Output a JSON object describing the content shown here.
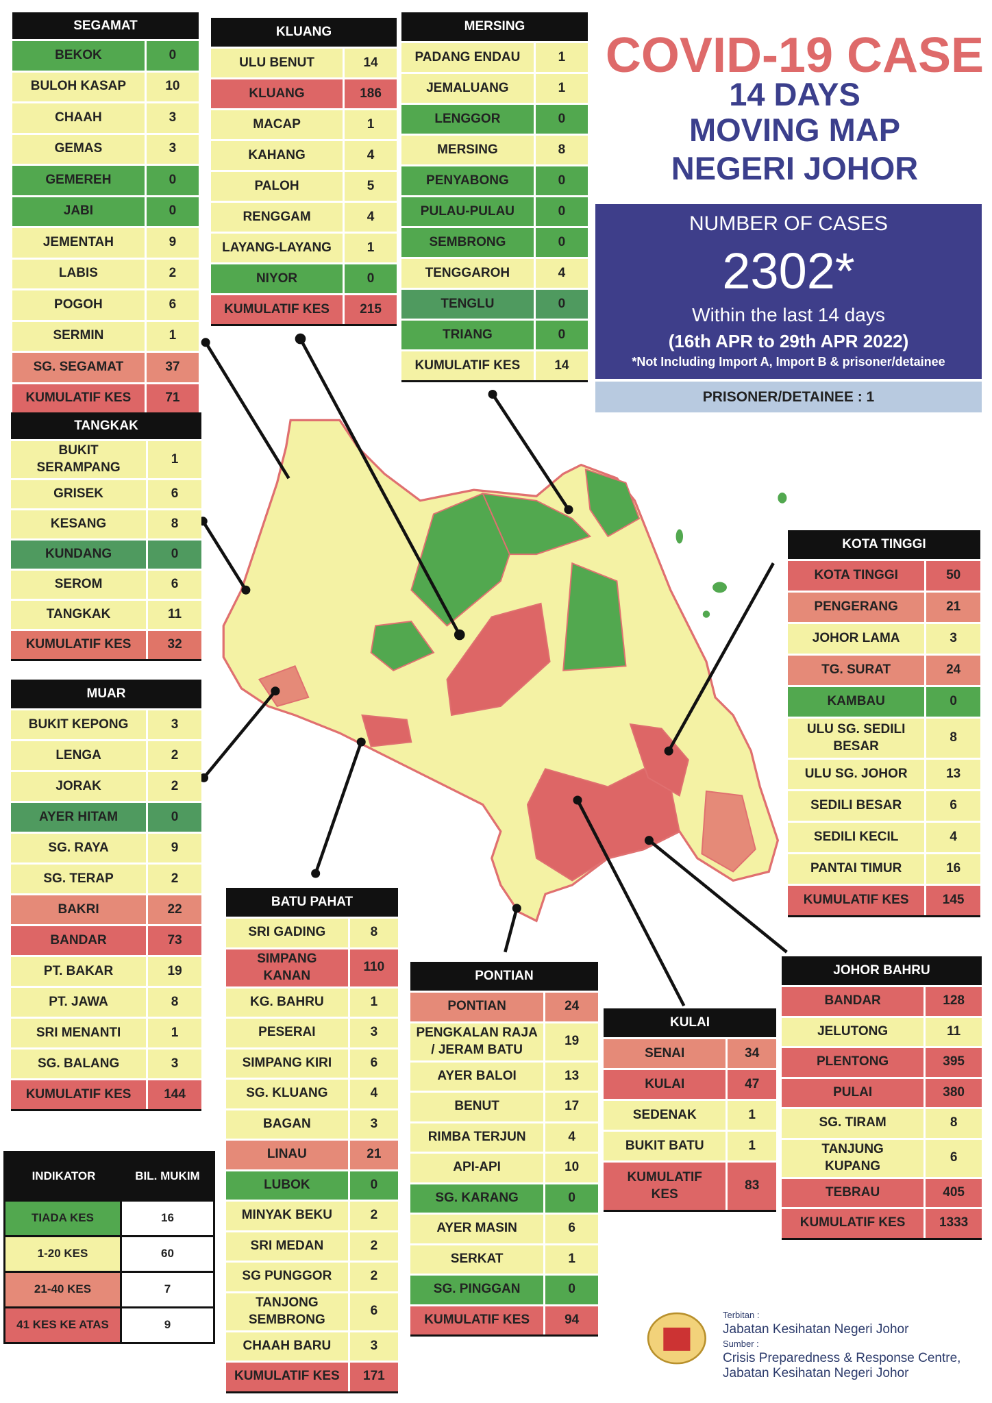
{
  "title": "COVID-19 CASE",
  "subtitle_lines": [
    "14 DAYS",
    "MOVING MAP",
    "NEGERI JOHOR"
  ],
  "summary": {
    "heading": "NUMBER OF CASES",
    "total": "2302*",
    "period": "Within the last 14 days",
    "dates": "(16th APR to 29th APR 2022)",
    "note": "*Not Including Import A, Import B & prisoner/detainee"
  },
  "prisoner": "PRISONER/DETAINEE : 1",
  "tables": [
    {
      "name": "SEGAMAT",
      "rows": [
        {
          "label": "BEKOK",
          "value": 0,
          "color": "#52a84f"
        },
        {
          "label": "BULOH KASAP",
          "value": 10,
          "color": "#f4f2a4"
        },
        {
          "label": "CHAAH",
          "value": 3,
          "color": "#f4f2a4"
        },
        {
          "label": "GEMAS",
          "value": 3,
          "color": "#f4f2a4"
        },
        {
          "label": "GEMEREH",
          "value": 0,
          "color": "#52a84f"
        },
        {
          "label": "JABI",
          "value": 0,
          "color": "#52a84f"
        },
        {
          "label": "JEMENTAH",
          "value": 9,
          "color": "#f4f2a4"
        },
        {
          "label": "LABIS",
          "value": 2,
          "color": "#f4f2a4"
        },
        {
          "label": "POGOH",
          "value": 6,
          "color": "#f4f2a4"
        },
        {
          "label": "SERMIN",
          "value": 1,
          "color": "#f4f2a4"
        },
        {
          "label": "SG. SEGAMAT",
          "value": 37,
          "color": "#e58a78"
        },
        {
          "label": "KUMULATIF KES",
          "value": 71,
          "color": "#dd6666"
        }
      ]
    },
    {
      "name": "KLUANG",
      "rows": [
        {
          "label": "ULU BENUT",
          "value": 14,
          "color": "#f4f2a4"
        },
        {
          "label": "KLUANG",
          "value": 186,
          "color": "#dd6666"
        },
        {
          "label": "MACAP",
          "value": 1,
          "color": "#f4f2a4"
        },
        {
          "label": "KAHANG",
          "value": 4,
          "color": "#f4f2a4"
        },
        {
          "label": "PALOH",
          "value": 5,
          "color": "#f4f2a4"
        },
        {
          "label": "RENGGAM",
          "value": 4,
          "color": "#f4f2a4"
        },
        {
          "label": "LAYANG-LAYANG",
          "value": 1,
          "color": "#f4f2a4"
        },
        {
          "label": "NIYOR",
          "value": 0,
          "color": "#52a84f"
        },
        {
          "label": "KUMULATIF KES",
          "value": 215,
          "color": "#dd6666"
        }
      ]
    },
    {
      "name": "MERSING",
      "rows": [
        {
          "label": "PADANG ENDAU",
          "value": 1,
          "color": "#f4f2a4"
        },
        {
          "label": "JEMALUANG",
          "value": 1,
          "color": "#f4f2a4"
        },
        {
          "label": "LENGGOR",
          "value": 0,
          "color": "#52a84f"
        },
        {
          "label": "MERSING",
          "value": 8,
          "color": "#f4f2a4"
        },
        {
          "label": "PENYABONG",
          "value": 0,
          "color": "#52a84f"
        },
        {
          "label": "PULAU-PULAU",
          "value": 0,
          "color": "#52a84f"
        },
        {
          "label": "SEMBRONG",
          "value": 0,
          "color": "#52a84f"
        },
        {
          "label": "TENGGAROH",
          "value": 4,
          "color": "#f4f2a4"
        },
        {
          "label": "TENGLU",
          "value": 0,
          "color": "#4f9a5f"
        },
        {
          "label": "TRIANG",
          "value": 0,
          "color": "#52a84f"
        },
        {
          "label": "KUMULATIF KES",
          "value": 14,
          "color": "#f4f2a4"
        }
      ]
    },
    {
      "name": "TANGKAK",
      "rows": [
        {
          "label": "BUKIT\nSERAMPANG",
          "value": 1,
          "color": "#f4f2a4"
        },
        {
          "label": "GRISEK",
          "value": 6,
          "color": "#f4f2a4"
        },
        {
          "label": "KESANG",
          "value": 8,
          "color": "#f4f2a4"
        },
        {
          "label": "KUNDANG",
          "value": 0,
          "color": "#4f9a5f"
        },
        {
          "label": "SEROM",
          "value": 6,
          "color": "#f4f2a4"
        },
        {
          "label": "TANGKAK",
          "value": 11,
          "color": "#f4f2a4"
        },
        {
          "label": "KUMULATIF KES",
          "value": 32,
          "color": "#e07568"
        }
      ]
    },
    {
      "name": "MUAR",
      "rows": [
        {
          "label": "BUKIT KEPONG",
          "value": 3,
          "color": "#f4f2a4"
        },
        {
          "label": "LENGA",
          "value": 2,
          "color": "#f4f2a4"
        },
        {
          "label": "JORAK",
          "value": 2,
          "color": "#f4f2a4"
        },
        {
          "label": "AYER HITAM",
          "value": 0,
          "color": "#4f9a5f"
        },
        {
          "label": "SG. RAYA",
          "value": 9,
          "color": "#f4f2a4"
        },
        {
          "label": "SG. TERAP",
          "value": 2,
          "color": "#f4f2a4"
        },
        {
          "label": "BAKRI",
          "value": 22,
          "color": "#e58a78"
        },
        {
          "label": "BANDAR",
          "value": 73,
          "color": "#dd6666"
        },
        {
          "label": "PT. BAKAR",
          "value": 19,
          "color": "#f4f2a4"
        },
        {
          "label": "PT. JAWA",
          "value": 8,
          "color": "#f4f2a4"
        },
        {
          "label": "SRI MENANTI",
          "value": 1,
          "color": "#f4f2a4"
        },
        {
          "label": "SG. BALANG",
          "value": 3,
          "color": "#f4f2a4"
        },
        {
          "label": "KUMULATIF KES",
          "value": 144,
          "color": "#dd6666"
        }
      ]
    },
    {
      "name": "BATU PAHAT",
      "rows": [
        {
          "label": "SRI GADING",
          "value": 8,
          "color": "#f4f2a4"
        },
        {
          "label": "SIMPANG\nKANAN",
          "value": 110,
          "color": "#dd6666"
        },
        {
          "label": "KG. BAHRU",
          "value": 1,
          "color": "#f4f2a4"
        },
        {
          "label": "PESERAI",
          "value": 3,
          "color": "#f4f2a4"
        },
        {
          "label": "SIMPANG KIRI",
          "value": 6,
          "color": "#f4f2a4"
        },
        {
          "label": "SG. KLUANG",
          "value": 4,
          "color": "#f4f2a4"
        },
        {
          "label": "BAGAN",
          "value": 3,
          "color": "#f4f2a4"
        },
        {
          "label": "LINAU",
          "value": 21,
          "color": "#e58a78"
        },
        {
          "label": "LUBOK",
          "value": 0,
          "color": "#52a84f"
        },
        {
          "label": "MINYAK BEKU",
          "value": 2,
          "color": "#f4f2a4"
        },
        {
          "label": "SRI MEDAN",
          "value": 2,
          "color": "#f4f2a4"
        },
        {
          "label": "SG PUNGGOR",
          "value": 2,
          "color": "#f4f2a4"
        },
        {
          "label": "TANJONG\nSEMBRONG",
          "value": 6,
          "color": "#f4f2a4"
        },
        {
          "label": "CHAAH BARU",
          "value": 3,
          "color": "#f4f2a4"
        },
        {
          "label": "KUMULATIF KES",
          "value": 171,
          "color": "#dd6666"
        }
      ]
    },
    {
      "name": "PONTIAN",
      "rows": [
        {
          "label": "PONTIAN",
          "value": 24,
          "color": "#e58a78"
        },
        {
          "label": "PENGKALAN RAJA\n/ JERAM BATU",
          "value": 19,
          "color": "#f4f2a4"
        },
        {
          "label": "AYER BALOI",
          "value": 13,
          "color": "#f4f2a4"
        },
        {
          "label": "BENUT",
          "value": 17,
          "color": "#f4f2a4"
        },
        {
          "label": "RIMBA TERJUN",
          "value": 4,
          "color": "#f4f2a4"
        },
        {
          "label": "API-API",
          "value": 10,
          "color": "#f4f2a4"
        },
        {
          "label": "SG. KARANG",
          "value": 0,
          "color": "#52a84f"
        },
        {
          "label": "AYER MASIN",
          "value": 6,
          "color": "#f4f2a4"
        },
        {
          "label": "SERKAT",
          "value": 1,
          "color": "#f4f2a4"
        },
        {
          "label": "SG. PINGGAN",
          "value": 0,
          "color": "#52a84f"
        },
        {
          "label": "KUMULATIF KES",
          "value": 94,
          "color": "#dd6666"
        }
      ]
    },
    {
      "name": "KULAI",
      "rows": [
        {
          "label": "SENAI",
          "value": 34,
          "color": "#e58a78"
        },
        {
          "label": "KULAI",
          "value": 47,
          "color": "#dd6666"
        },
        {
          "label": "SEDENAK",
          "value": 1,
          "color": "#f4f2a4"
        },
        {
          "label": "BUKIT BATU",
          "value": 1,
          "color": "#f4f2a4"
        },
        {
          "label": "KUMULATIF\nKES",
          "value": 83,
          "color": "#dd6666"
        }
      ]
    },
    {
      "name": "KOTA TINGGI",
      "rows": [
        {
          "label": "KOTA TINGGI",
          "value": 50,
          "color": "#dd6666"
        },
        {
          "label": "PENGERANG",
          "value": 21,
          "color": "#e58a78"
        },
        {
          "label": "JOHOR LAMA",
          "value": 3,
          "color": "#f4f2a4"
        },
        {
          "label": "TG. SURAT",
          "value": 24,
          "color": "#e58a78"
        },
        {
          "label": "KAMBAU",
          "value": 0,
          "color": "#52a84f"
        },
        {
          "label": "ULU SG. SEDILI\nBESAR",
          "value": 8,
          "color": "#f4f2a4"
        },
        {
          "label": "ULU  SG. JOHOR",
          "value": 13,
          "color": "#f4f2a4"
        },
        {
          "label": "SEDILI BESAR",
          "value": 6,
          "color": "#f4f2a4"
        },
        {
          "label": "SEDILI KECIL",
          "value": 4,
          "color": "#f4f2a4"
        },
        {
          "label": "PANTAI TIMUR",
          "value": 16,
          "color": "#f4f2a4"
        },
        {
          "label": "KUMULATIF KES",
          "value": 145,
          "color": "#dd6666"
        }
      ]
    },
    {
      "name": "JOHOR BAHRU",
      "rows": [
        {
          "label": "BANDAR",
          "value": 128,
          "color": "#dd6666"
        },
        {
          "label": "JELUTONG",
          "value": 11,
          "color": "#f4f2a4"
        },
        {
          "label": "PLENTONG",
          "value": 395,
          "color": "#dd6666"
        },
        {
          "label": "PULAI",
          "value": 380,
          "color": "#dd6666"
        },
        {
          "label": "SG. TIRAM",
          "value": 8,
          "color": "#f4f2a4"
        },
        {
          "label": "TANJUNG\nKUPANG",
          "value": 6,
          "color": "#f4f2a4"
        },
        {
          "label": "TEBRAU",
          "value": 405,
          "color": "#dd6666"
        },
        {
          "label": "KUMULATIF KES",
          "value": 1333,
          "color": "#dd6666"
        }
      ]
    }
  ],
  "legend": {
    "headers": [
      "INDIKATOR",
      "BIL. MUKIM"
    ],
    "rows": [
      {
        "label": "TIADA KES",
        "value": 16,
        "color": "#52a84f"
      },
      {
        "label": "1-20 KES",
        "value": 60,
        "color": "#f4f2a4"
      },
      {
        "label": "21-40 KES",
        "value": 7,
        "color": "#e58a78"
      },
      {
        "label": "41 KES KE ATAS",
        "value": 9,
        "color": "#dd6666"
      }
    ]
  },
  "footer": {
    "publisher_label": "Terbitan :",
    "publisher": "Jabatan Kesihatan Negeri Johor",
    "source_label": "Sumber :",
    "source_lines": [
      "Crisis Preparedness & Response Centre,",
      "Jabatan Kesihatan Negeri Johor"
    ]
  }
}
